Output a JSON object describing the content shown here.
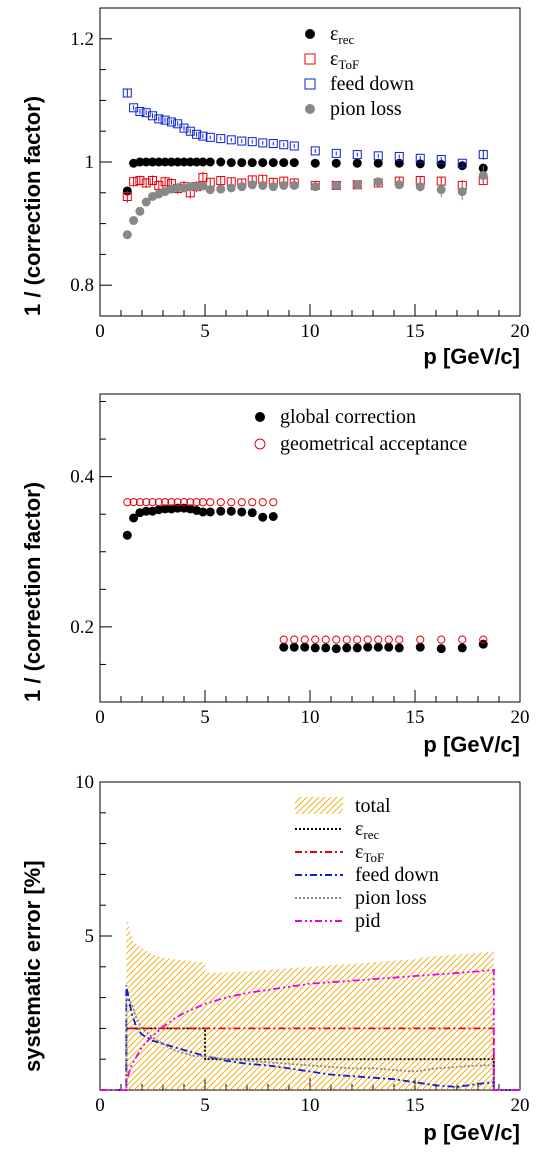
{
  "chart_data": [
    {
      "type": "scatter",
      "xlabel": "p [GeV/c]",
      "ylabel": "1 / (correction factor)",
      "xlim": [
        0,
        20
      ],
      "ylim": [
        0.75,
        1.25
      ],
      "xticks": [
        "0",
        "5",
        "10",
        "15",
        "20"
      ],
      "yticks": [
        {
          "v": 0.8,
          "label": "0.8"
        },
        {
          "v": 1.0,
          "label": "1"
        },
        {
          "v": 1.2,
          "label": "1.2"
        }
      ],
      "legend_position": "top-right",
      "series": [
        {
          "name": "ε",
          "sub": "rec",
          "marker": "filled-circle",
          "color": "#000000",
          "x": [
            1.3,
            1.6,
            1.9,
            2.2,
            2.5,
            2.8,
            3.1,
            3.4,
            3.7,
            4.0,
            4.3,
            4.6,
            4.9,
            5.25,
            5.75,
            6.25,
            6.75,
            7.25,
            7.75,
            8.25,
            8.75,
            9.25,
            10.25,
            11.25,
            12.25,
            13.25,
            14.25,
            15.25,
            16.25,
            17.25,
            18.25
          ],
          "y": [
            0.953,
            0.998,
            1.0,
            1.0,
            1.0,
            1.0,
            1.0,
            1.0,
            1.0,
            1.0,
            1.0,
            1.0,
            1.0,
            1.0,
            1.0,
            0.999,
            0.999,
            0.999,
            0.999,
            0.999,
            0.999,
            0.999,
            0.998,
            0.998,
            0.998,
            0.998,
            0.998,
            0.997,
            0.996,
            0.994,
            0.99
          ],
          "err": [
            0.004,
            0.002,
            0.002,
            0.002,
            0.002,
            0.002,
            0.002,
            0.002,
            0.002,
            0.002,
            0.002,
            0.002,
            0.002,
            0.002,
            0.002,
            0.002,
            0.002,
            0.002,
            0.002,
            0.002,
            0.002,
            0.002,
            0.002,
            0.002,
            0.002,
            0.002,
            0.002,
            0.002,
            0.003,
            0.003,
            0.004
          ]
        },
        {
          "name": "ε",
          "sub": "ToF",
          "marker": "open-square",
          "color": "#e8000b",
          "x": [
            1.3,
            1.6,
            1.9,
            2.2,
            2.5,
            2.8,
            3.1,
            3.4,
            3.7,
            4.0,
            4.3,
            4.6,
            4.9,
            5.25,
            5.75,
            6.25,
            6.75,
            7.25,
            7.75,
            8.25,
            8.75,
            9.25,
            10.25,
            11.25,
            12.25,
            13.25,
            14.25,
            15.25,
            16.25,
            17.25,
            18.25
          ],
          "y": [
            0.944,
            0.968,
            0.97,
            0.966,
            0.97,
            0.962,
            0.968,
            0.965,
            0.957,
            0.96,
            0.95,
            0.96,
            0.975,
            0.967,
            0.97,
            0.968,
            0.966,
            0.971,
            0.972,
            0.967,
            0.969,
            0.966,
            0.962,
            0.962,
            0.963,
            0.966,
            0.969,
            0.97,
            0.969,
            0.962,
            0.97
          ],
          "err": [
            0.01,
            0.008,
            0.008,
            0.008,
            0.008,
            0.008,
            0.008,
            0.009,
            0.009,
            0.009,
            0.009,
            0.009,
            0.009,
            0.006,
            0.006,
            0.006,
            0.006,
            0.006,
            0.006,
            0.006,
            0.006,
            0.006,
            0.006,
            0.006,
            0.006,
            0.006,
            0.006,
            0.007,
            0.007,
            0.008,
            0.008
          ]
        },
        {
          "name": "feed down",
          "marker": "open-square",
          "color": "#0a1fd6",
          "x": [
            1.3,
            1.6,
            1.9,
            2.2,
            2.5,
            2.8,
            3.1,
            3.4,
            3.7,
            4.0,
            4.3,
            4.6,
            4.9,
            5.25,
            5.75,
            6.25,
            6.75,
            7.25,
            7.75,
            8.25,
            8.75,
            9.25,
            10.25,
            11.25,
            12.25,
            13.25,
            14.25,
            15.25,
            16.25,
            17.25,
            18.25
          ],
          "y": [
            1.112,
            1.088,
            1.082,
            1.08,
            1.075,
            1.07,
            1.068,
            1.065,
            1.062,
            1.055,
            1.05,
            1.045,
            1.042,
            1.04,
            1.038,
            1.036,
            1.034,
            1.033,
            1.031,
            1.03,
            1.028,
            1.026,
            1.018,
            1.014,
            1.012,
            1.01,
            1.009,
            1.006,
            1.004,
            0.998,
            1.012
          ],
          "err": [
            0.006,
            0.004,
            0.004,
            0.004,
            0.004,
            0.004,
            0.004,
            0.004,
            0.004,
            0.004,
            0.004,
            0.004,
            0.004,
            0.003,
            0.003,
            0.003,
            0.003,
            0.003,
            0.003,
            0.003,
            0.003,
            0.003,
            0.003,
            0.003,
            0.003,
            0.003,
            0.003,
            0.004,
            0.004,
            0.004,
            0.008
          ]
        },
        {
          "name": "pion loss",
          "marker": "filled-circle",
          "color": "#888888",
          "x": [
            1.3,
            1.6,
            1.9,
            2.2,
            2.5,
            2.8,
            3.1,
            3.4,
            3.7,
            4.0,
            4.3,
            4.6,
            4.9,
            5.25,
            5.75,
            6.25,
            6.75,
            7.25,
            7.75,
            8.25,
            8.75,
            9.25,
            10.25,
            11.25,
            12.25,
            13.25,
            14.25,
            15.25,
            16.25,
            17.25,
            18.25
          ],
          "y": [
            0.882,
            0.905,
            0.92,
            0.935,
            0.944,
            0.948,
            0.952,
            0.956,
            0.958,
            0.958,
            0.96,
            0.96,
            0.961,
            0.955,
            0.956,
            0.958,
            0.96,
            0.963,
            0.962,
            0.96,
            0.962,
            0.962,
            0.96,
            0.962,
            0.963,
            0.968,
            0.963,
            0.96,
            0.955,
            0.952,
            0.978
          ],
          "err": [
            0.006,
            0.005,
            0.005,
            0.004,
            0.004,
            0.004,
            0.004,
            0.004,
            0.004,
            0.004,
            0.004,
            0.004,
            0.004,
            0.004,
            0.004,
            0.004,
            0.004,
            0.004,
            0.004,
            0.004,
            0.004,
            0.004,
            0.004,
            0.004,
            0.004,
            0.004,
            0.006,
            0.008,
            0.012,
            0.014,
            0.016
          ]
        }
      ]
    },
    {
      "type": "scatter",
      "xlabel": "p [GeV/c]",
      "ylabel": "1 / (correction factor)",
      "xlim": [
        0,
        20
      ],
      "ylim": [
        0.1,
        0.51
      ],
      "xticks": [
        "0",
        "5",
        "10",
        "15",
        "20"
      ],
      "yticks": [
        {
          "v": 0.2,
          "label": "0.2"
        },
        {
          "v": 0.4,
          "label": "0.4"
        }
      ],
      "legend_position": "top-right",
      "series": [
        {
          "name": "global correction",
          "marker": "filled-circle",
          "color": "#000000",
          "x": [
            1.3,
            1.6,
            1.9,
            2.2,
            2.5,
            2.8,
            3.1,
            3.4,
            3.7,
            4.0,
            4.3,
            4.6,
            4.9,
            5.25,
            5.75,
            6.25,
            6.75,
            7.25,
            7.75,
            8.25,
            8.75,
            9.25,
            9.75,
            10.25,
            10.75,
            11.25,
            11.75,
            12.25,
            12.75,
            13.25,
            13.75,
            14.25,
            15.25,
            16.25,
            17.25,
            18.25
          ],
          "y": [
            0.322,
            0.345,
            0.352,
            0.354,
            0.354,
            0.356,
            0.357,
            0.357,
            0.358,
            0.358,
            0.357,
            0.355,
            0.353,
            0.353,
            0.354,
            0.354,
            0.353,
            0.352,
            0.346,
            0.347,
            0.173,
            0.173,
            0.173,
            0.172,
            0.172,
            0.171,
            0.172,
            0.172,
            0.173,
            0.173,
            0.173,
            0.172,
            0.173,
            0.171,
            0.172,
            0.177
          ],
          "err": [
            0.004,
            0.003,
            0.002,
            0.002,
            0.002,
            0.002,
            0.002,
            0.002,
            0.002,
            0.002,
            0.002,
            0.002,
            0.002,
            0.002,
            0.002,
            0.002,
            0.002,
            0.002,
            0.002,
            0.002,
            0.001,
            0.001,
            0.001,
            0.001,
            0.001,
            0.001,
            0.001,
            0.001,
            0.001,
            0.001,
            0.001,
            0.001,
            0.001,
            0.001,
            0.002,
            0.002
          ]
        },
        {
          "name": "geometrical acceptance",
          "marker": "open-circle",
          "color": "#e8000b",
          "x": [
            1.3,
            1.6,
            1.9,
            2.2,
            2.5,
            2.8,
            3.1,
            3.4,
            3.7,
            4.0,
            4.3,
            4.6,
            4.9,
            5.25,
            5.75,
            6.25,
            6.75,
            7.25,
            7.75,
            8.25,
            8.75,
            9.25,
            9.75,
            10.25,
            10.75,
            11.25,
            11.75,
            12.25,
            12.75,
            13.25,
            13.75,
            14.25,
            15.25,
            16.25,
            17.25,
            18.25
          ],
          "y": [
            0.366,
            0.366,
            0.366,
            0.366,
            0.366,
            0.366,
            0.366,
            0.366,
            0.366,
            0.366,
            0.366,
            0.366,
            0.366,
            0.366,
            0.366,
            0.366,
            0.366,
            0.366,
            0.366,
            0.366,
            0.183,
            0.183,
            0.183,
            0.183,
            0.183,
            0.183,
            0.183,
            0.183,
            0.183,
            0.183,
            0.183,
            0.183,
            0.183,
            0.183,
            0.183,
            0.183
          ],
          "err": []
        }
      ]
    },
    {
      "type": "line",
      "xlabel": "p [GeV/c]",
      "ylabel": "systematic error [%]",
      "xlim": [
        0,
        20
      ],
      "ylim": [
        0,
        10
      ],
      "xticks": [
        "0",
        "5",
        "10",
        "15",
        "20"
      ],
      "yticks": [
        {
          "v": 5,
          "label": "5"
        },
        {
          "v": 10,
          "label": "10"
        }
      ],
      "legend_position": "top-right",
      "series": [
        {
          "name": "total",
          "style": "hatched-area",
          "color": "#ffb300",
          "x": [
            -1,
            1.25,
            1.25,
            1.6,
            2.0,
            2.5,
            3.0,
            4.0,
            5.0,
            5.0,
            6.0,
            7.0,
            8.0,
            9.0,
            10.0,
            11.0,
            12.0,
            13.0,
            14.0,
            15.0,
            15.25,
            16.0,
            17.0,
            18.0,
            18.75,
            18.75,
            21
          ],
          "y": [
            0,
            0,
            5.6,
            4.8,
            4.6,
            4.4,
            4.3,
            4.2,
            4.15,
            3.8,
            3.82,
            3.85,
            3.9,
            3.95,
            4.0,
            4.05,
            4.1,
            4.15,
            4.2,
            4.25,
            4.3,
            4.35,
            4.4,
            4.45,
            4.5,
            0,
            0
          ]
        },
        {
          "name": "ε",
          "sub": "rec",
          "style": "dotted",
          "color": "#000000",
          "x": [
            -1,
            1.25,
            1.25,
            5.0,
            5.0,
            18.75,
            18.75,
            21
          ],
          "y": [
            0,
            0,
            2.0,
            2.0,
            1.0,
            1.0,
            0,
            0
          ]
        },
        {
          "name": "ε",
          "sub": "ToF",
          "style": "dash-dot",
          "color": "#e8000b",
          "x": [
            -1,
            1.25,
            1.25,
            18.75,
            18.75,
            21
          ],
          "y": [
            0,
            0,
            2.0,
            2.0,
            0,
            0
          ]
        },
        {
          "name": "feed down",
          "style": "dash-dot",
          "color": "#0a1fd6",
          "x": [
            -1,
            1.25,
            1.25,
            1.5,
            1.75,
            2.0,
            2.5,
            3.0,
            3.5,
            4.0,
            4.5,
            5.0,
            6.0,
            7.0,
            8.0,
            9.0,
            10.0,
            11.0,
            12.0,
            13.0,
            14.0,
            15.0,
            16.0,
            17.0,
            18.0,
            18.75,
            18.75,
            21
          ],
          "y": [
            0,
            0,
            3.4,
            2.5,
            2.0,
            1.8,
            1.6,
            1.5,
            1.4,
            1.3,
            1.2,
            1.1,
            0.95,
            0.85,
            0.8,
            0.7,
            0.6,
            0.5,
            0.45,
            0.4,
            0.35,
            0.25,
            0.15,
            0.1,
            0.2,
            0.25,
            0,
            0
          ]
        },
        {
          "name": "pion loss",
          "style": "dotted",
          "color": "#888888",
          "x": [
            -1,
            1.25,
            1.25,
            1.5,
            1.75,
            2.0,
            2.5,
            3.0,
            3.5,
            4.0,
            4.5,
            5.0,
            6.0,
            7.0,
            8.0,
            9.0,
            10.0,
            11.0,
            12.0,
            13.0,
            14.0,
            15.0,
            16.0,
            17.0,
            18.0,
            18.75,
            18.75,
            21
          ],
          "y": [
            0,
            0,
            3.0,
            2.8,
            2.3,
            2.0,
            1.7,
            1.5,
            1.3,
            1.2,
            1.1,
            1.1,
            1.0,
            0.95,
            0.9,
            0.85,
            0.8,
            0.75,
            0.7,
            0.7,
            0.65,
            0.6,
            0.7,
            0.75,
            0.8,
            0.8,
            0,
            0
          ]
        },
        {
          "name": "pid",
          "style": "dash-dot-dot",
          "color": "#e800e8",
          "x": [
            -1,
            1.25,
            1.25,
            1.5,
            2.0,
            2.5,
            3.0,
            3.5,
            4.0,
            4.5,
            5.0,
            6.0,
            7.0,
            8.0,
            9.0,
            10.0,
            11.0,
            12.0,
            13.0,
            14.0,
            15.0,
            16.0,
            17.0,
            18.0,
            18.75,
            18.75,
            21
          ],
          "y": [
            0,
            0,
            0.3,
            0.8,
            1.4,
            1.75,
            2.05,
            2.3,
            2.5,
            2.65,
            2.8,
            3.0,
            3.15,
            3.25,
            3.35,
            3.45,
            3.5,
            3.55,
            3.6,
            3.65,
            3.7,
            3.75,
            3.8,
            3.85,
            3.9,
            0,
            0
          ]
        }
      ]
    }
  ]
}
